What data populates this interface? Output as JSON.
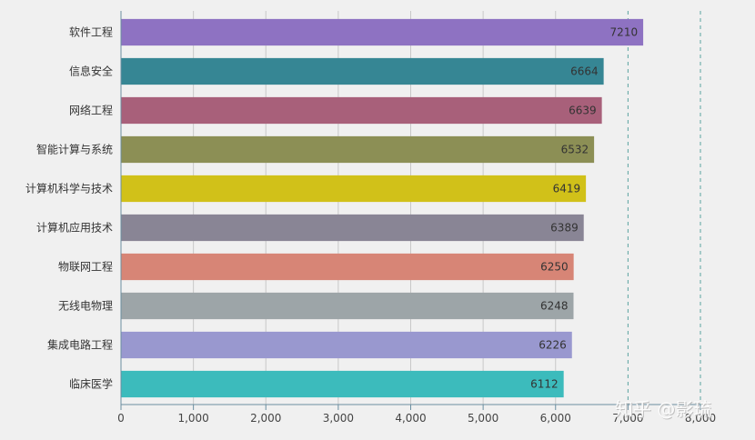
{
  "chart_data": {
    "type": "bar",
    "orientation": "horizontal",
    "categories": [
      "软件工程",
      "信息安全",
      "网络工程",
      "智能计算与系统",
      "计算机科学与技术",
      "计算机应用技术",
      "物联网工程",
      "无线电物理",
      "集成电路工程",
      "临床医学"
    ],
    "values": [
      7210,
      6664,
      6639,
      6532,
      6419,
      6389,
      6250,
      6248,
      6226,
      6112
    ],
    "data_labels": [
      "7210",
      "6664",
      "6639",
      "6532",
      "6419",
      "6389",
      "6250",
      "6248",
      "6226",
      "6112"
    ],
    "colors": [
      "#8e72c2",
      "#368694",
      "#a8607a",
      "#8c8f55",
      "#d1c119",
      "#898595",
      "#d78576",
      "#9da5a8",
      "#9998cf",
      "#3cbbbc"
    ],
    "xlim": [
      0,
      8000
    ],
    "x_ticks": [
      0,
      1000,
      2000,
      3000,
      4000,
      5000,
      6000,
      7000,
      8000
    ],
    "x_tick_labels": [
      "0",
      "1,000",
      "2,000",
      "3,000",
      "4,000",
      "5,000",
      "6,000",
      "7,000",
      "8,000"
    ],
    "grid": true,
    "title": "",
    "xlabel": "",
    "ylabel": ""
  },
  "watermark": "知乎 @影琉"
}
